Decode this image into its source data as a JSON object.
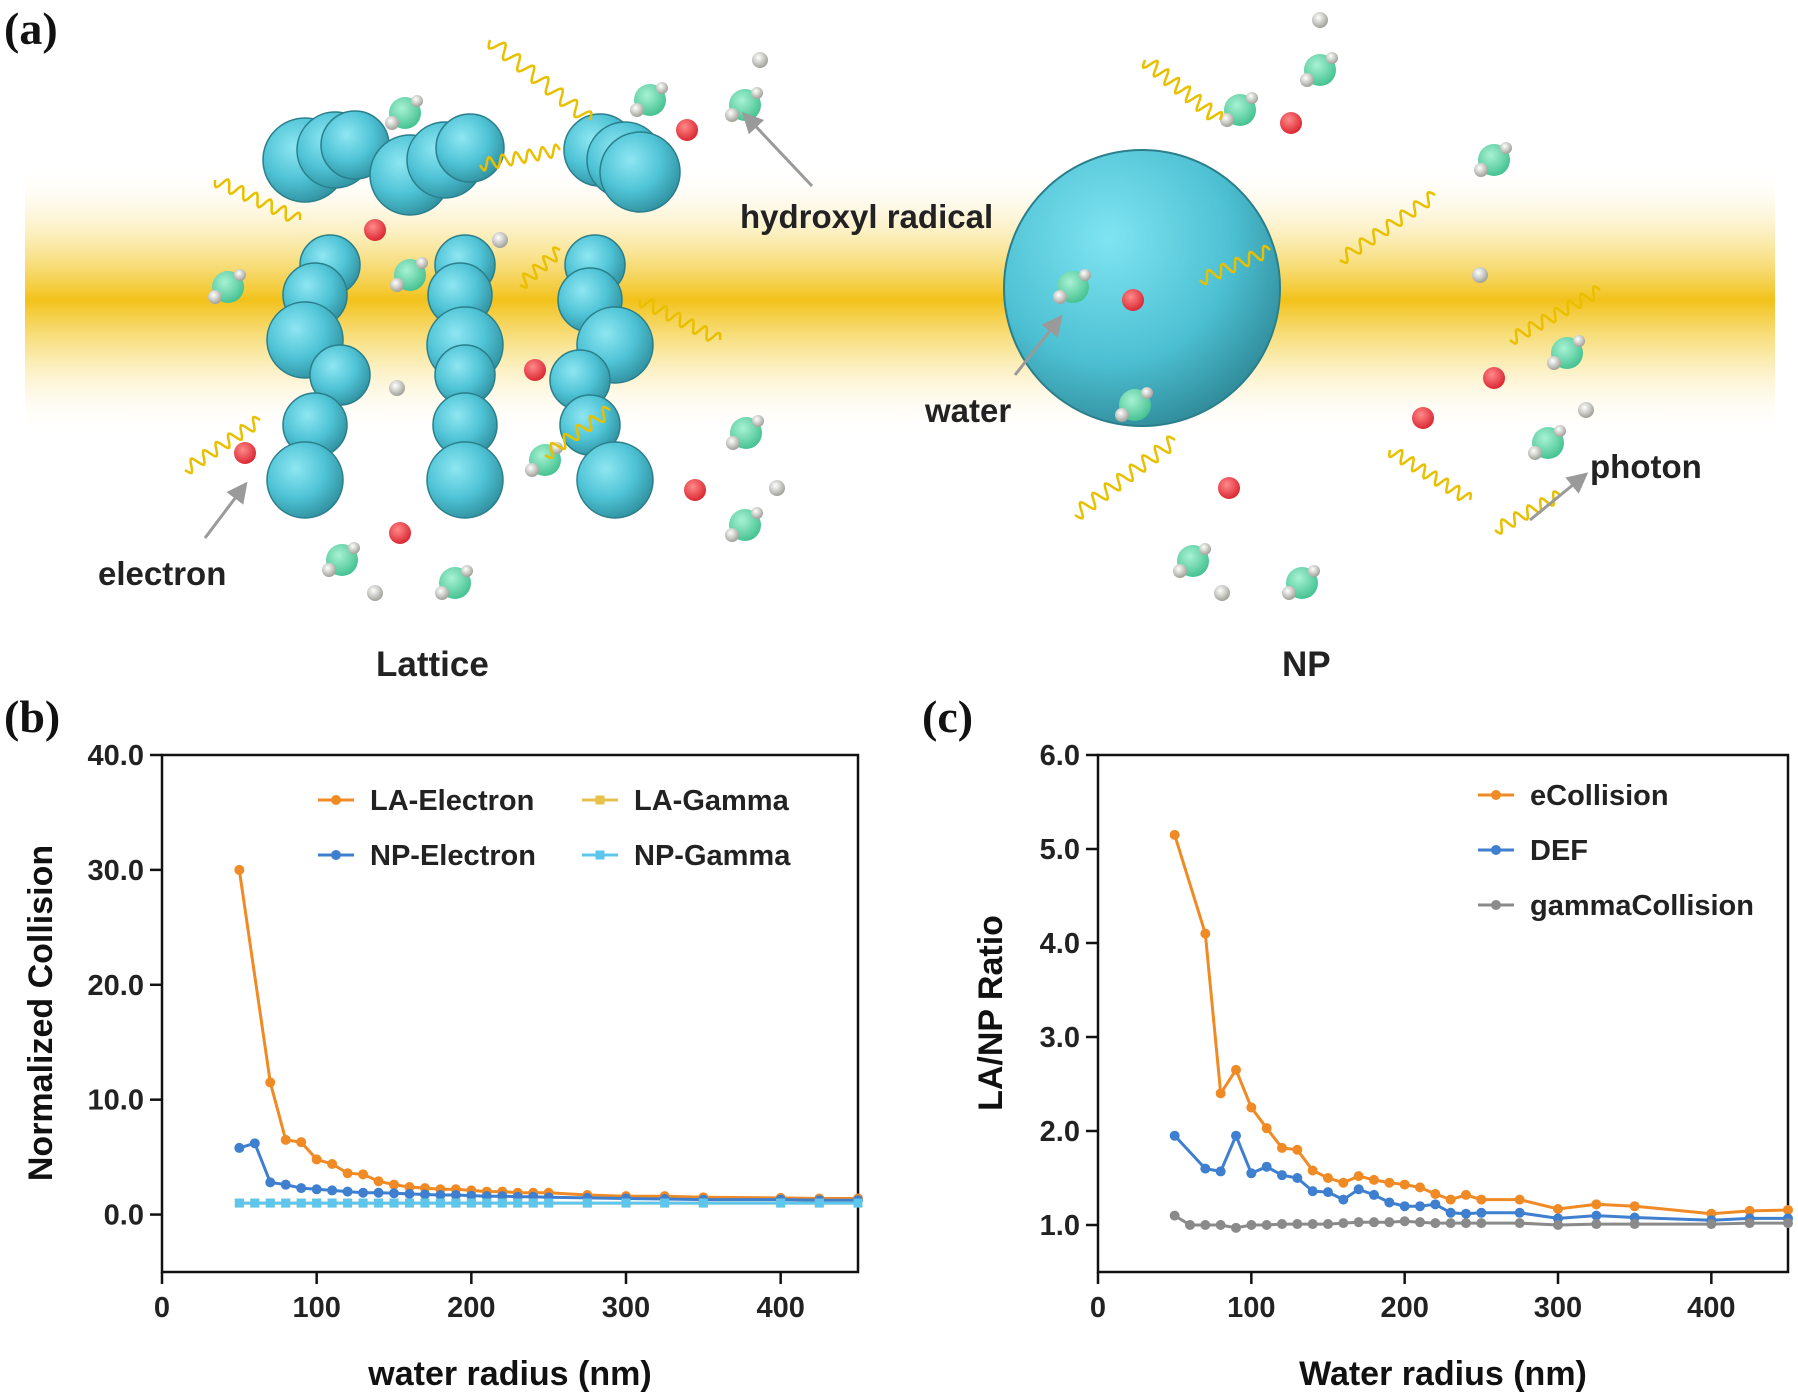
{
  "panel_labels": {
    "a": "(a)",
    "b": "(b)",
    "c": "(c)"
  },
  "schematic": {
    "left_title": "Lattice",
    "right_title": "NP",
    "labels": {
      "hydroxyl": "hydroxyl radical",
      "electron": "electron",
      "water": "water",
      "photon": "photon"
    },
    "colors": {
      "band": "#f2c21a",
      "sphere": "#55c8d8",
      "electron": "#e8303a",
      "water": "#58d6a8",
      "photon": "#e9c000"
    }
  },
  "chart_data": [
    {
      "id": "b",
      "type": "line",
      "title": "",
      "xlabel": "water radius (nm)",
      "ylabel": "Normalized Collision",
      "xlim": [
        0,
        450
      ],
      "ylim": [
        -5,
        40
      ],
      "xticks": [
        0,
        100,
        200,
        300,
        400
      ],
      "yticks": [
        0,
        10,
        20,
        30,
        40
      ],
      "xtick_labels": [
        "0",
        "100",
        "200",
        "300",
        "400"
      ],
      "ytick_labels": [
        "0.0",
        "10.0",
        "20.0",
        "30.0",
        "40.0"
      ],
      "legend_position": "top-right",
      "x": [
        50,
        60,
        70,
        80,
        90,
        100,
        110,
        120,
        130,
        140,
        150,
        160,
        170,
        180,
        190,
        200,
        210,
        220,
        230,
        240,
        250,
        275,
        300,
        325,
        350,
        400,
        425,
        450
      ],
      "series": [
        {
          "name": "LA-Electron",
          "color": "#f08a24",
          "marker": "circle",
          "values": [
            30.0,
            null,
            11.5,
            6.5,
            6.3,
            4.8,
            4.4,
            3.6,
            3.5,
            2.9,
            2.6,
            2.4,
            2.3,
            2.2,
            2.2,
            2.1,
            2.0,
            2.0,
            1.9,
            1.9,
            1.9,
            1.7,
            1.6,
            1.6,
            1.5,
            1.45,
            1.4,
            1.4
          ]
        },
        {
          "name": "NP-Electron",
          "color": "#3f7fcf",
          "marker": "circle",
          "values": [
            5.8,
            6.2,
            2.8,
            2.6,
            2.3,
            2.2,
            2.1,
            2.0,
            1.9,
            1.9,
            1.85,
            1.8,
            1.75,
            1.7,
            1.7,
            1.65,
            1.6,
            1.6,
            1.55,
            1.55,
            1.5,
            1.45,
            1.4,
            1.35,
            1.3,
            1.3,
            1.25,
            1.25
          ]
        },
        {
          "name": "LA-Gamma",
          "color": "#e6c24a",
          "marker": "square",
          "values": [
            1.0,
            1.0,
            1.0,
            1.0,
            1.0,
            1.0,
            1.0,
            1.0,
            1.0,
            1.0,
            1.0,
            1.0,
            1.0,
            1.0,
            1.0,
            1.0,
            1.0,
            1.0,
            1.0,
            1.0,
            1.0,
            1.0,
            1.0,
            1.0,
            1.0,
            1.0,
            1.0,
            1.0
          ]
        },
        {
          "name": "NP-Gamma",
          "color": "#5ec6ec",
          "marker": "square",
          "values": [
            1.0,
            1.0,
            1.0,
            1.0,
            1.0,
            1.0,
            1.0,
            1.0,
            1.0,
            1.0,
            1.0,
            1.0,
            1.0,
            1.0,
            1.0,
            1.0,
            1.0,
            1.0,
            1.0,
            1.0,
            1.0,
            1.0,
            1.0,
            1.0,
            1.0,
            1.0,
            1.0,
            1.0
          ]
        }
      ]
    },
    {
      "id": "c",
      "type": "line",
      "title": "",
      "xlabel": "Water radius (nm)",
      "ylabel": "LA/NP Ratio",
      "xlim": [
        0,
        450
      ],
      "ylim": [
        0.5,
        6.0
      ],
      "xticks": [
        0,
        100,
        200,
        300,
        400
      ],
      "yticks": [
        1,
        2,
        3,
        4,
        5,
        6
      ],
      "xtick_labels": [
        "0",
        "100",
        "200",
        "300",
        "400"
      ],
      "ytick_labels": [
        "1.0",
        "2.0",
        "3.0",
        "4.0",
        "5.0",
        "6.0"
      ],
      "legend_position": "top-right",
      "x": [
        50,
        60,
        70,
        80,
        90,
        100,
        110,
        120,
        130,
        140,
        150,
        160,
        170,
        180,
        190,
        200,
        210,
        220,
        230,
        240,
        250,
        275,
        300,
        325,
        350,
        400,
        425,
        450
      ],
      "series": [
        {
          "name": "eCollision",
          "color": "#f08a24",
          "marker": "circle",
          "values": [
            5.15,
            null,
            4.1,
            2.4,
            2.65,
            2.25,
            2.03,
            1.82,
            1.8,
            1.58,
            1.5,
            1.45,
            1.52,
            1.48,
            1.45,
            1.43,
            1.4,
            1.33,
            1.27,
            1.32,
            1.27,
            1.27,
            1.17,
            1.22,
            1.2,
            1.12,
            1.15,
            1.16
          ]
        },
        {
          "name": "DEF",
          "color": "#3f7fcf",
          "marker": "circle",
          "values": [
            1.95,
            null,
            1.6,
            1.57,
            1.95,
            1.55,
            1.62,
            1.53,
            1.5,
            1.36,
            1.35,
            1.27,
            1.38,
            1.32,
            1.24,
            1.2,
            1.2,
            1.22,
            1.13,
            1.12,
            1.13,
            1.13,
            1.07,
            1.1,
            1.08,
            1.05,
            1.07,
            1.07
          ]
        },
        {
          "name": "gammaCollision",
          "color": "#8a8a8a",
          "marker": "circle",
          "values": [
            1.1,
            1.0,
            1.0,
            1.0,
            0.97,
            1.0,
            1.0,
            1.01,
            1.01,
            1.01,
            1.01,
            1.02,
            1.03,
            1.03,
            1.03,
            1.04,
            1.03,
            1.02,
            1.02,
            1.02,
            1.02,
            1.02,
            1.0,
            1.01,
            1.01,
            1.01,
            1.02,
            1.02
          ]
        }
      ]
    }
  ]
}
